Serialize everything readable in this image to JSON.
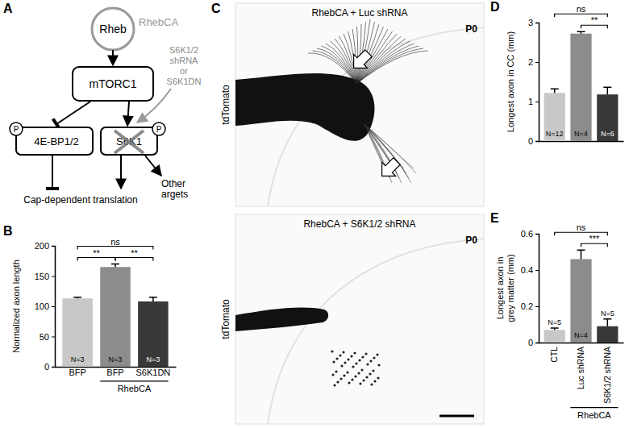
{
  "diagram": {
    "panel_label": "A",
    "rheb": "Rheb",
    "rheb_mutant": "RhebCA",
    "complex": "mTORC1",
    "knockdown": [
      "S6K1/2",
      "shRNA",
      "or",
      "S6K1DN"
    ],
    "left_target": "4E-BP1/2",
    "right_target": "S6K1",
    "phospho": "P",
    "output": "Cap-dependent translation",
    "other": [
      "Other",
      "argets"
    ]
  },
  "images": {
    "panel_label": "C",
    "items": [
      {
        "title": "RhebCA + Luc shRNA",
        "stage": "P0",
        "stain": "tdTomato"
      },
      {
        "title": "RhebCA + S6K1/2 shRNA",
        "stage": "P0",
        "stain": "tdTomato"
      }
    ]
  },
  "chart_data": [
    {
      "type": "bar",
      "panel_label": "B",
      "y_label": "Normalized axon length",
      "categories": [
        "BFP",
        "BFP",
        "S6K1DN"
      ],
      "values": [
        113,
        165,
        108
      ],
      "errors": [
        2,
        5,
        7
      ],
      "colors": [
        "#c8c8c8",
        "#8c8c8c",
        "#383838"
      ],
      "ylim": [
        0,
        200
      ],
      "yticks": [
        0,
        50,
        100,
        150,
        200
      ],
      "annotations": [
        "N=3",
        "N=3",
        "N=3"
      ],
      "significance": [
        {
          "from": 0,
          "to": 1,
          "label": "**"
        },
        {
          "from": 1,
          "to": 2,
          "label": "**"
        },
        {
          "from": 0,
          "to": 2,
          "label": "ns"
        }
      ],
      "group": {
        "from": 1,
        "to": 2,
        "label": "RhebCA"
      }
    },
    {
      "type": "bar",
      "panel_label": "D",
      "y_label": "Longest axon in CC (mm)",
      "categories": [
        null,
        null,
        null
      ],
      "tick_labels": "y",
      "values": [
        1.22,
        2.72,
        1.18
      ],
      "errors": [
        0.1,
        0.05,
        0.18
      ],
      "colors": [
        "#c8c8c8",
        "#8c8c8c",
        "#383838"
      ],
      "ylim": [
        0,
        3
      ],
      "yticks": [
        0,
        1,
        2,
        3
      ],
      "annotations": [
        "N=12",
        "N=4",
        "N=6"
      ],
      "significance": [
        {
          "from": 1,
          "to": 2,
          "label": "**"
        },
        {
          "from": 0,
          "to": 2,
          "label": "ns"
        }
      ]
    },
    {
      "type": "bar",
      "panel_label": "E",
      "y_label": [
        "Longest axon in",
        "grey matter (mm)"
      ],
      "categories": [
        "CTL",
        "Luc shRNA",
        "S6K1/2 shRNA"
      ],
      "values": [
        0.07,
        0.46,
        0.09
      ],
      "errors": [
        0.01,
        0.05,
        0.04
      ],
      "colors": [
        "#c8c8c8",
        "#8c8c8c",
        "#383838"
      ],
      "ylim": [
        0,
        0.6
      ],
      "yticks": [
        0,
        0.2,
        0.4,
        0.6
      ],
      "annotations": [
        "N=5",
        "N=4",
        "N=5"
      ],
      "significance": [
        {
          "from": 1,
          "to": 2,
          "label": "***"
        },
        {
          "from": 0,
          "to": 2,
          "label": "ns"
        }
      ],
      "group": {
        "from": 1,
        "to": 2,
        "label": "RhebCA"
      }
    }
  ]
}
